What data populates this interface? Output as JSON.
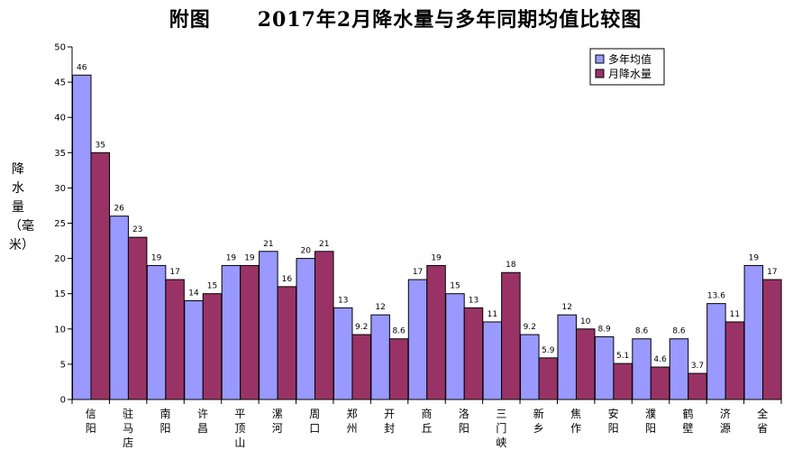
{
  "page": {
    "title": "附图      2017年2月降水量与多年同期均值比较图"
  },
  "chart_data": {
    "type": "bar",
    "title": "附图      2017年2月降水量与多年同期均值比较图",
    "ylabel": "降水量（毫米）",
    "xlabel": "",
    "ylim": [
      0,
      50
    ],
    "yticks": [
      0,
      5,
      10,
      15,
      20,
      25,
      30,
      35,
      40,
      45,
      50
    ],
    "grid": false,
    "legend_position": "top-right",
    "categories": [
      "信阳",
      "驻马店",
      "南阳",
      "许昌",
      "平顶山",
      "漯河",
      "周口",
      "郑州",
      "开封",
      "商丘",
      "洛阳",
      "三门峡",
      "新乡",
      "焦作",
      "安阳",
      "濮阳",
      "鹤壁",
      "济源",
      "全省"
    ],
    "series": [
      {
        "name": "多年均值",
        "color": "#9999ff",
        "values": [
          46,
          26,
          19,
          14,
          19,
          21,
          20,
          13,
          12,
          17,
          15,
          11,
          9.2,
          12,
          8.9,
          8.6,
          8.6,
          13.6,
          19
        ]
      },
      {
        "name": "月降水量",
        "color": "#993366",
        "values": [
          35,
          23,
          17,
          15,
          19,
          16,
          21,
          9.2,
          8.6,
          19,
          13,
          18,
          5.9,
          10,
          5.1,
          4.6,
          3.7,
          11,
          17
        ]
      }
    ]
  }
}
